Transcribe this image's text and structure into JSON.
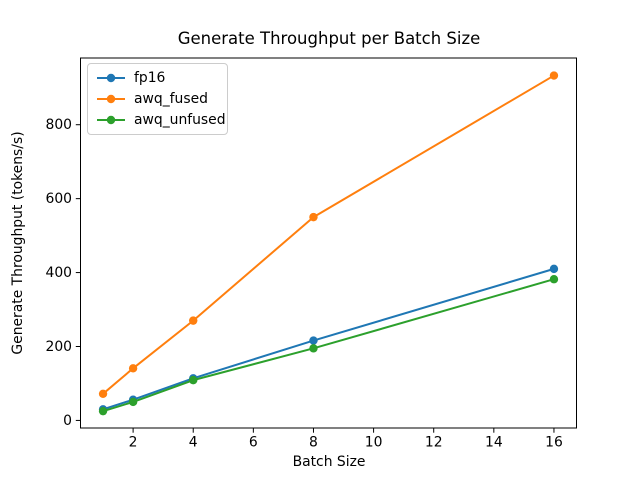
{
  "chart_data": {
    "type": "line",
    "title": "Generate Throughput per Batch Size",
    "xlabel": "Batch Size",
    "ylabel": "Generate Throughput (tokens/s)",
    "x": [
      1,
      2,
      4,
      8,
      16
    ],
    "series": [
      {
        "name": "fp16",
        "color": "#1f77b4",
        "values": [
          30,
          56,
          114,
          216,
          410
        ]
      },
      {
        "name": "awq_fused",
        "color": "#ff7f0e",
        "values": [
          72,
          141,
          270,
          550,
          933
        ]
      },
      {
        "name": "awq_unfused",
        "color": "#2ca02c",
        "values": [
          25,
          50,
          109,
          195,
          382
        ]
      }
    ],
    "xticks": [
      2,
      4,
      6,
      8,
      10,
      12,
      14,
      16
    ],
    "yticks": [
      0,
      200,
      400,
      600,
      800
    ],
    "xlim": [
      0.25,
      16.75
    ],
    "ylim": [
      -20.5,
      980.5
    ],
    "grid": false,
    "legend_position": "upper left",
    "marker": "circle",
    "background_color": "#ffffff",
    "spine_color": "#000000"
  }
}
